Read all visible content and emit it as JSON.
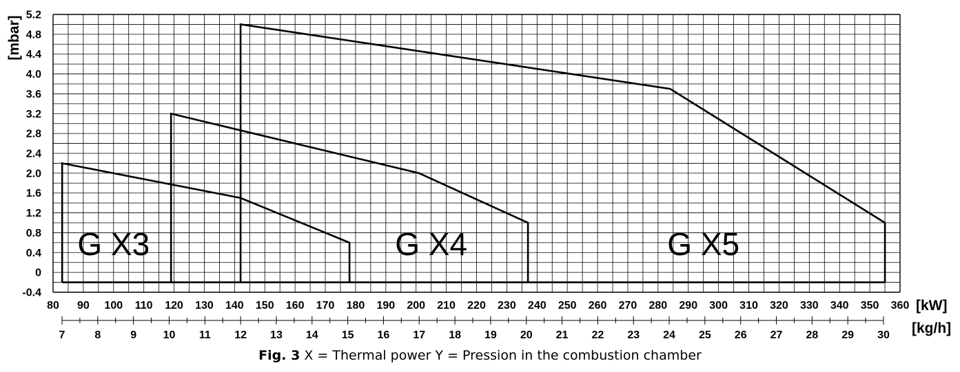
{
  "chart_data": {
    "type": "line",
    "y_axis": {
      "label": "[mbar]",
      "min": -0.4,
      "max": 5.2,
      "ticks": [
        -0.4,
        0,
        0.4,
        0.8,
        1.2,
        1.6,
        2.0,
        2.4,
        2.8,
        3.2,
        3.6,
        4.0,
        4.4,
        4.8,
        5.2
      ],
      "tick_labels": [
        "-0.4",
        "0",
        "0.4",
        "0.8",
        "1.2",
        "1.6",
        "2.0",
        "2.4",
        "2.8",
        "3.2",
        "3.6",
        "4.0",
        "4.4",
        "4.8",
        "5.2"
      ]
    },
    "x_axis": {
      "label": "[kW]",
      "min": 80,
      "max": 360,
      "ticks": [
        80,
        90,
        100,
        110,
        120,
        130,
        140,
        150,
        160,
        170,
        180,
        190,
        200,
        210,
        220,
        230,
        240,
        250,
        260,
        270,
        280,
        290,
        300,
        310,
        320,
        330,
        340,
        350,
        360
      ]
    },
    "secondary_x_axis": {
      "label": "[kg/h]",
      "ticks": [
        7,
        8,
        9,
        10,
        11,
        12,
        13,
        14,
        15,
        16,
        17,
        18,
        19,
        20,
        21,
        22,
        23,
        24,
        25,
        26,
        27,
        28,
        29,
        30
      ]
    },
    "grid": true,
    "series": [
      {
        "name": "G X3",
        "x": [
          83,
          83,
          142,
          178,
          178
        ],
        "y": [
          -0.2,
          2.2,
          1.5,
          0.6,
          -0.2
        ]
      },
      {
        "name": "G X4",
        "x": [
          119,
          119,
          201,
          237,
          237
        ],
        "y": [
          -0.2,
          3.2,
          2.0,
          1.0,
          -0.2
        ]
      },
      {
        "name": "G X5",
        "x": [
          142,
          142,
          284,
          355,
          355
        ],
        "y": [
          -0.2,
          5.0,
          3.7,
          1.0,
          -0.2
        ]
      }
    ],
    "dashed_markers_x": [
      119,
      142
    ],
    "caption": {
      "figure": "Fig. 3",
      "text": "X = Thermal power Y = Pression in the combustion chamber"
    }
  }
}
